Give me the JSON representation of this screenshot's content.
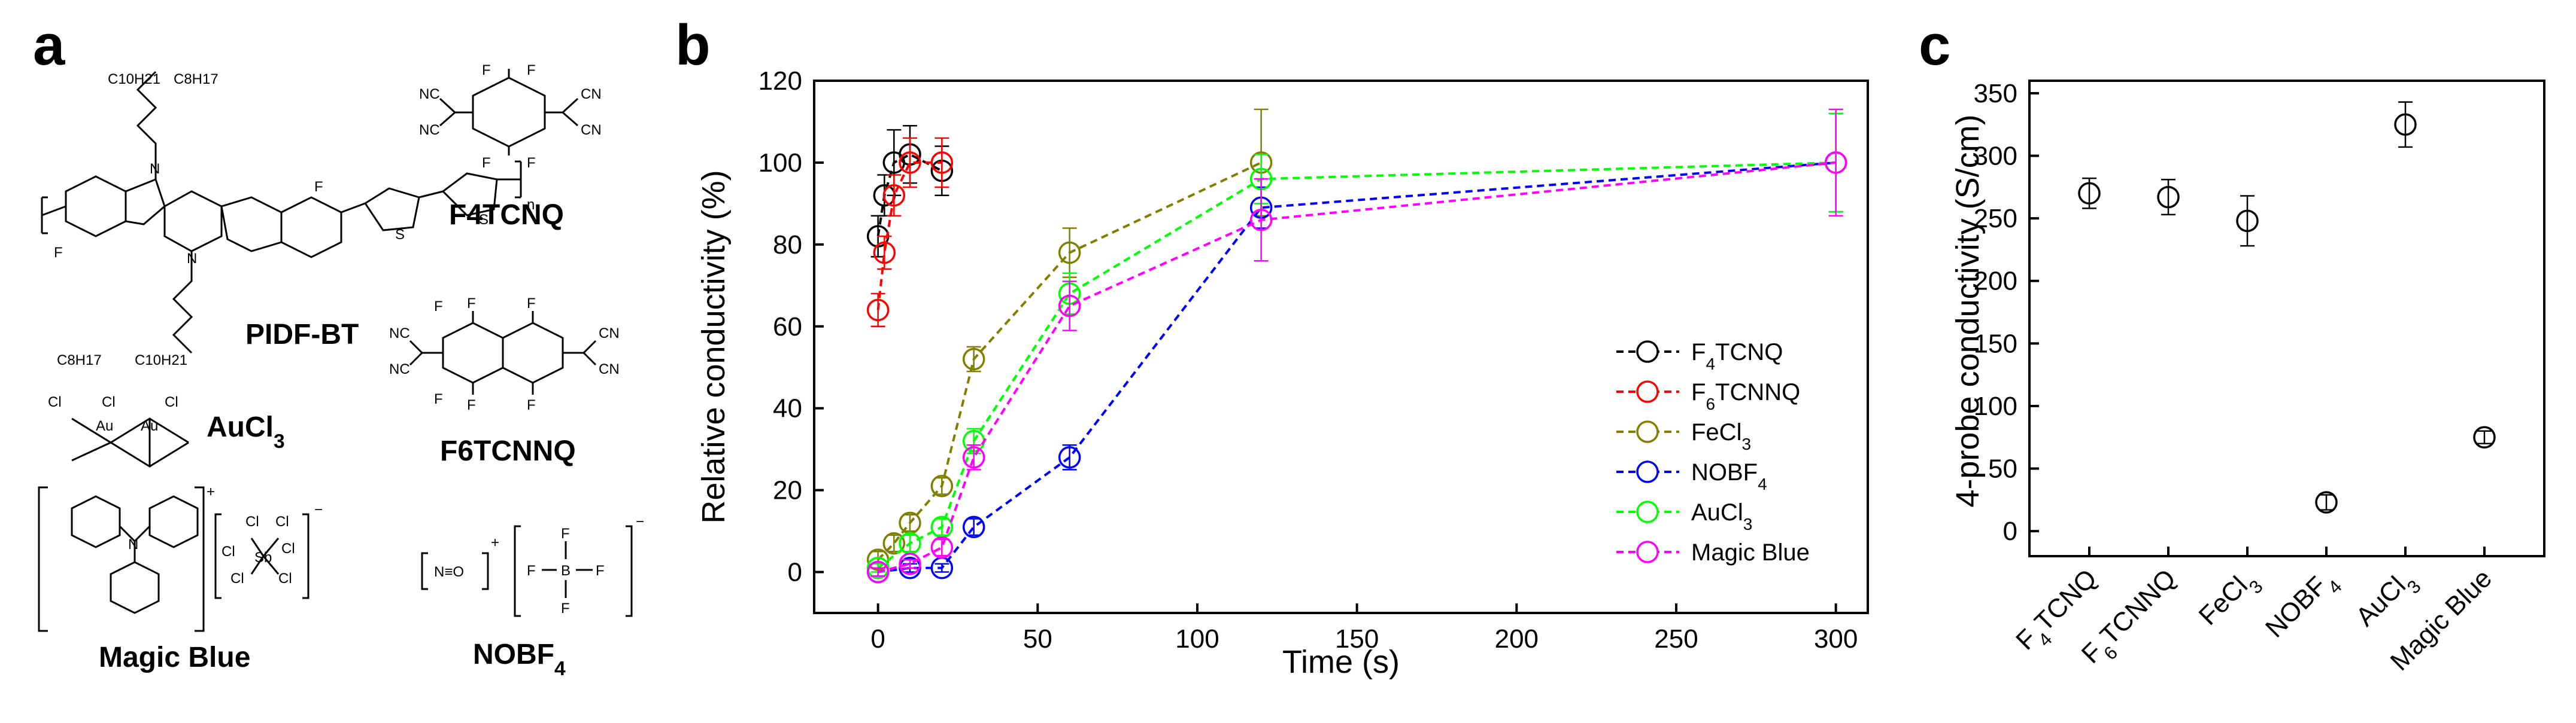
{
  "panels": {
    "a": "a",
    "b": "b",
    "c": "c"
  },
  "structures": [
    {
      "name": "PIDF-BT",
      "atoms": [
        "C10H21",
        "C8H17",
        "F",
        "F",
        "N",
        "N",
        "S",
        "S",
        "n"
      ]
    },
    {
      "name": "F4TCNQ",
      "atoms": [
        "F",
        "F",
        "F",
        "F",
        "NC",
        "NC",
        "CN",
        "CN"
      ]
    },
    {
      "name": "AuCl3",
      "atoms": [
        "Cl",
        "Au",
        "Cl",
        "Au",
        "Cl"
      ]
    },
    {
      "name": "F6TCNNQ",
      "atoms": [
        "F",
        "F",
        "F",
        "F",
        "F",
        "F",
        "NC",
        "NC",
        "CN",
        "CN"
      ]
    },
    {
      "name": "Magic Blue",
      "atoms": [
        "N",
        "Sb",
        "Cl",
        "+",
        "−"
      ]
    },
    {
      "name": "NOBF4",
      "atoms": [
        "N≡O",
        "B",
        "F",
        "+",
        "−"
      ]
    }
  ],
  "chart_data": [
    {
      "panel": "b",
      "type": "line",
      "xlabel": "Time (s)",
      "ylabel": "Relative conductivity (%)",
      "xlim": [
        -20,
        310
      ],
      "ylim": [
        -10,
        120
      ],
      "xticks": [
        0,
        50,
        100,
        150,
        200,
        250,
        300
      ],
      "yticks": [
        0,
        20,
        40,
        60,
        80,
        100,
        120
      ],
      "legend_position": "bottom-right",
      "series": [
        {
          "name": "F4TCNQ",
          "color": "#000000",
          "x": [
            0,
            2,
            5,
            10,
            20
          ],
          "y": [
            82,
            92,
            100,
            102,
            98
          ],
          "err": [
            5,
            5,
            8,
            7,
            6
          ]
        },
        {
          "name": "F6TCNNQ",
          "color": "#ff0000",
          "x": [
            0,
            2,
            5,
            10,
            20
          ],
          "y": [
            64,
            78,
            92,
            100,
            100
          ],
          "err": [
            4,
            4,
            5,
            6,
            6
          ]
        },
        {
          "name": "FeCl3",
          "color": "#808000",
          "x": [
            0,
            5,
            10,
            20,
            30,
            60,
            120
          ],
          "y": [
            3,
            7,
            12,
            21,
            52,
            78,
            100
          ],
          "err": [
            2,
            2,
            2,
            2,
            3,
            6,
            13
          ]
        },
        {
          "name": "NOBF4",
          "color": "#0000ff",
          "x": [
            0,
            10,
            20,
            30,
            60,
            120,
            300
          ],
          "y": [
            0,
            1,
            1,
            11,
            28,
            89,
            100
          ],
          "err": [
            1,
            1,
            1,
            2,
            3,
            5,
            12
          ]
        },
        {
          "name": "AuCl3",
          "color": "#00ff00",
          "x": [
            0,
            10,
            20,
            30,
            60,
            120,
            300
          ],
          "y": [
            1,
            7,
            11,
            32,
            68,
            96,
            100
          ],
          "err": [
            1,
            2,
            2,
            3,
            5,
            6,
            12
          ]
        },
        {
          "name": "Magic Blue",
          "color": "#ff00ff",
          "x": [
            0,
            10,
            20,
            30,
            60,
            120,
            300
          ],
          "y": [
            0,
            2,
            6,
            28,
            65,
            86,
            100
          ],
          "err": [
            1,
            1,
            2,
            3,
            6,
            10,
            13
          ]
        }
      ]
    },
    {
      "panel": "c",
      "type": "scatter",
      "ylabel": "4-probe conductivity (S/cm)",
      "ylim": [
        -20,
        360
      ],
      "yticks": [
        0,
        50,
        100,
        150,
        200,
        250,
        300,
        350
      ],
      "categories": [
        "F4TCNQ",
        "F6TCNNQ",
        "FeCl3",
        "NOBF4",
        "AuCl3",
        "Magic Blue"
      ],
      "values": [
        270,
        267,
        248,
        23,
        325,
        75
      ],
      "err": [
        12,
        14,
        20,
        6,
        18,
        5
      ]
    }
  ]
}
